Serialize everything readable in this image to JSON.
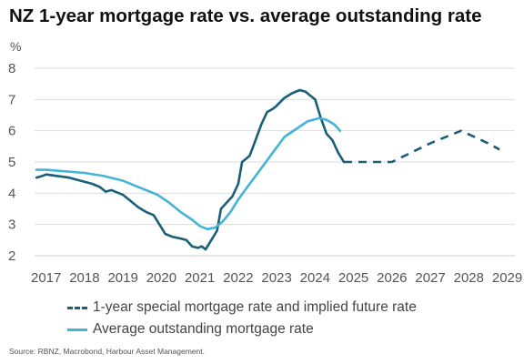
{
  "title": "NZ 1-year mortgage rate vs. average outstanding rate",
  "source": "Source: RBNZ, Macrobond, Harbour Asset Management.",
  "chart_data": {
    "type": "line",
    "title": "NZ 1-year mortgage rate vs. average outstanding rate",
    "ylabel": "%",
    "xlabel": "",
    "xlim": [
      2016.7,
      2029.2
    ],
    "ylim": [
      2,
      8
    ],
    "xticks": [
      2017,
      2018,
      2019,
      2020,
      2021,
      2022,
      2023,
      2024,
      2025,
      2026,
      2027,
      2028,
      2029
    ],
    "yticks": [
      2,
      3,
      4,
      5,
      6,
      7,
      8
    ],
    "grid": true,
    "legend_position": "bottom",
    "series": [
      {
        "name": "1-year special mortgage rate and implied future rate",
        "color": "#1b5e78",
        "style": "solid",
        "x": [
          2016.75,
          2016.9,
          2017.0,
          2017.3,
          2017.6,
          2017.9,
          2018.2,
          2018.4,
          2018.55,
          2018.7,
          2018.9,
          2019.0,
          2019.2,
          2019.4,
          2019.6,
          2019.8,
          2020.0,
          2020.1,
          2020.3,
          2020.5,
          2020.65,
          2020.8,
          2020.95,
          2021.05,
          2021.15,
          2021.3,
          2021.45,
          2021.55,
          2021.7,
          2021.85,
          2022.0,
          2022.1,
          2022.2,
          2022.3,
          2022.45,
          2022.6,
          2022.75,
          2022.9,
          2023.0,
          2023.2,
          2023.4,
          2023.6,
          2023.75,
          2023.9,
          2024.0,
          2024.15,
          2024.3,
          2024.45,
          2024.6,
          2024.75
        ],
        "values": [
          4.5,
          4.55,
          4.6,
          4.55,
          4.5,
          4.4,
          4.3,
          4.2,
          4.05,
          4.1,
          4.0,
          3.95,
          3.75,
          3.55,
          3.4,
          3.3,
          2.9,
          2.7,
          2.6,
          2.55,
          2.5,
          2.3,
          2.25,
          2.3,
          2.2,
          2.5,
          2.8,
          3.5,
          3.7,
          3.9,
          4.3,
          5.0,
          5.1,
          5.2,
          5.7,
          6.2,
          6.6,
          6.7,
          6.8,
          7.05,
          7.2,
          7.3,
          7.25,
          7.1,
          7.0,
          6.4,
          5.9,
          5.7,
          5.3,
          5.0
        ]
      },
      {
        "name": "implied future rate",
        "color": "#1b5e78",
        "style": "dashed",
        "x": [
          2024.75,
          2025.0,
          2026.0,
          2027.0,
          2027.8,
          2028.5,
          2028.8
        ],
        "values": [
          5.0,
          5.0,
          5.0,
          5.6,
          6.0,
          5.6,
          5.4
        ]
      },
      {
        "name": "Average outstanding mortgage rate",
        "color": "#42b5d6",
        "style": "solid",
        "x": [
          2016.75,
          2017.0,
          2017.5,
          2018.0,
          2018.5,
          2019.0,
          2019.3,
          2019.6,
          2019.9,
          2020.2,
          2020.5,
          2020.8,
          2021.0,
          2021.2,
          2021.4,
          2021.6,
          2021.8,
          2022.0,
          2022.3,
          2022.6,
          2022.9,
          2023.2,
          2023.5,
          2023.8,
          2024.1,
          2024.3,
          2024.5,
          2024.65
        ],
        "values": [
          4.75,
          4.75,
          4.7,
          4.65,
          4.55,
          4.4,
          4.25,
          4.1,
          3.95,
          3.7,
          3.4,
          3.15,
          2.95,
          2.85,
          2.9,
          3.1,
          3.4,
          3.8,
          4.3,
          4.8,
          5.3,
          5.8,
          6.05,
          6.3,
          6.4,
          6.35,
          6.2,
          6.0
        ]
      }
    ]
  },
  "legend": {
    "items": [
      {
        "label": "1-year special mortgage rate and implied future rate",
        "color": "#1b5e78",
        "style": "dashed"
      },
      {
        "label": "Average outstanding mortgage rate",
        "color": "#42b5d6",
        "style": "solid"
      }
    ]
  }
}
